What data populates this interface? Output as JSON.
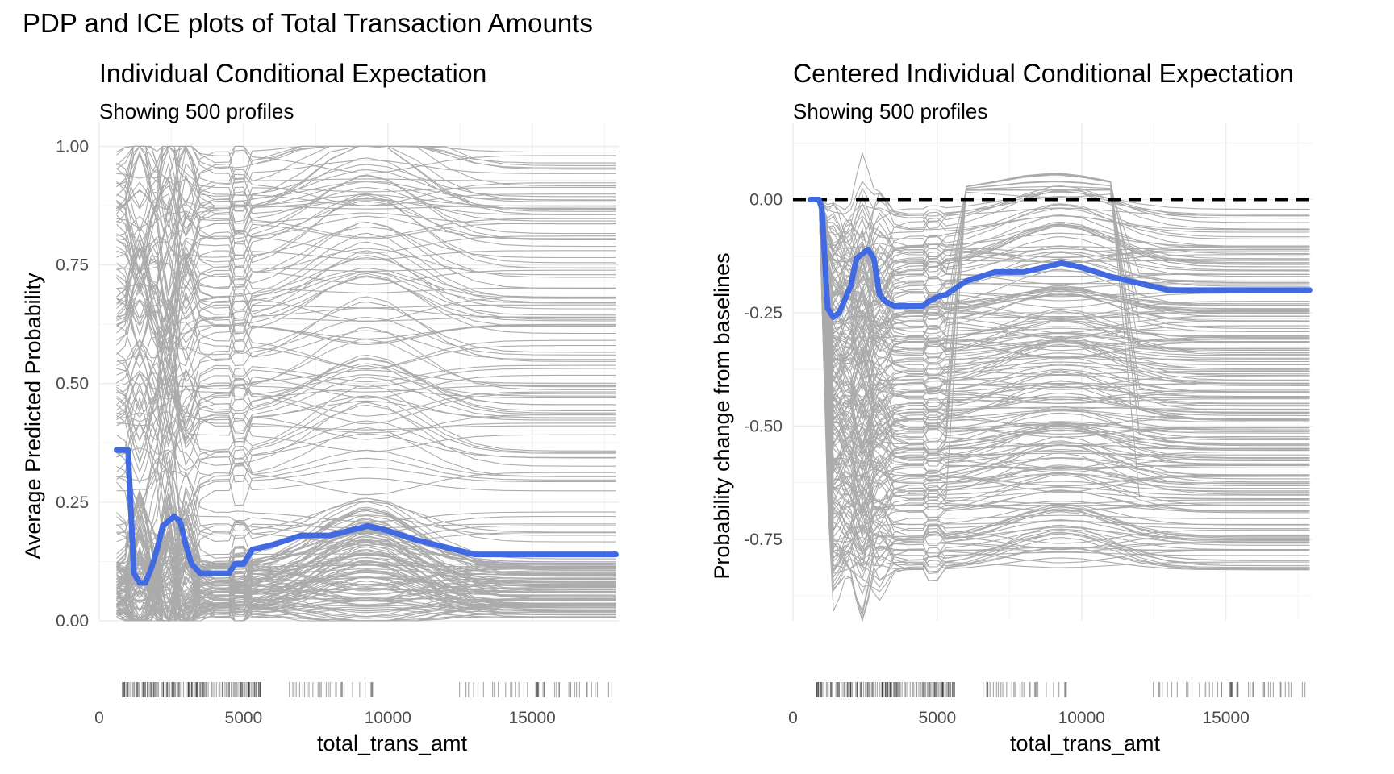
{
  "figure": {
    "title": "PDP and ICE plots of Total Transaction Amounts",
    "colors": {
      "ice": "#ababab",
      "pdp": "#4169e1",
      "reference_line": "#000000",
      "rug": "#000000"
    }
  },
  "chart_data": [
    {
      "type": "line",
      "title": "Individual Conditional Expectation",
      "subtitle": "Showing 500 profiles",
      "xlabel": "total_trans_amt",
      "ylabel": "Average Predicted Probability",
      "xlim": [
        0,
        18000
      ],
      "ylim": [
        0,
        1.05
      ],
      "x_ticks": [
        0,
        5000,
        10000,
        15000
      ],
      "y_ticks": [
        0,
        0.25,
        0.5,
        0.75,
        1.0
      ],
      "x_tick_labels": [
        "0",
        "5000",
        "10000",
        "15000"
      ],
      "y_tick_labels": [
        "0.00",
        "0.25",
        "0.50",
        "0.75",
        "1.00"
      ],
      "grid": true,
      "legend": "none",
      "x": [
        600,
        1000,
        1200,
        1400,
        1600,
        1800,
        2000,
        2200,
        2400,
        2600,
        2800,
        3000,
        3200,
        3500,
        4000,
        4500,
        4700,
        5000,
        5300,
        6000,
        7000,
        8000,
        9000,
        9300,
        10000,
        11000,
        12000,
        13000,
        14000,
        15000,
        16000,
        17000,
        17900
      ],
      "series": [
        {
          "values": [
            0.36,
            0.36,
            0.1,
            0.08,
            0.08,
            0.11,
            0.15,
            0.2,
            0.21,
            0.22,
            0.21,
            0.16,
            0.12,
            0.1,
            0.1,
            0.1,
            0.12,
            0.12,
            0.15,
            0.16,
            0.18,
            0.18,
            0.195,
            0.2,
            0.19,
            0.17,
            0.155,
            0.14,
            0.14,
            0.14,
            0.14,
            0.14,
            0.14
          ]
        }
      ],
      "ice_profiles": 500,
      "rug": true
    },
    {
      "type": "line",
      "title": "Centered Individual Conditional Expectation",
      "subtitle": "Showing 500 profiles",
      "xlabel": "total_trans_amt",
      "ylabel": "Probability change from baselines",
      "xlim": [
        0,
        18000
      ],
      "ylim": [
        -0.93,
        0.17
      ],
      "x_ticks": [
        0,
        5000,
        10000,
        15000
      ],
      "y_ticks": [
        -0.75,
        -0.5,
        -0.25,
        0.0
      ],
      "x_tick_labels": [
        "0",
        "5000",
        "10000",
        "15000"
      ],
      "y_tick_labels": [
        "-0.75",
        "-0.50",
        "-0.25",
        "0.00"
      ],
      "grid": true,
      "legend": "none",
      "reference_line_y": 0,
      "x": [
        600,
        900,
        1000,
        1200,
        1400,
        1600,
        1800,
        2000,
        2200,
        2400,
        2600,
        2800,
        3000,
        3200,
        3500,
        4000,
        4500,
        4700,
        5000,
        5300,
        6000,
        7000,
        8000,
        9000,
        9300,
        10000,
        11000,
        12000,
        13000,
        14000,
        15000,
        16000,
        17000,
        17900
      ],
      "series": [
        {
          "values": [
            0.0,
            0.0,
            -0.02,
            -0.24,
            -0.26,
            -0.25,
            -0.22,
            -0.19,
            -0.13,
            -0.12,
            -0.11,
            -0.13,
            -0.21,
            -0.225,
            -0.235,
            -0.235,
            -0.235,
            -0.225,
            -0.215,
            -0.21,
            -0.18,
            -0.16,
            -0.16,
            -0.145,
            -0.14,
            -0.15,
            -0.17,
            -0.185,
            -0.2,
            -0.2,
            -0.2,
            -0.2,
            -0.2,
            -0.2
          ]
        }
      ],
      "ice_profiles": 500,
      "rug": true
    }
  ]
}
